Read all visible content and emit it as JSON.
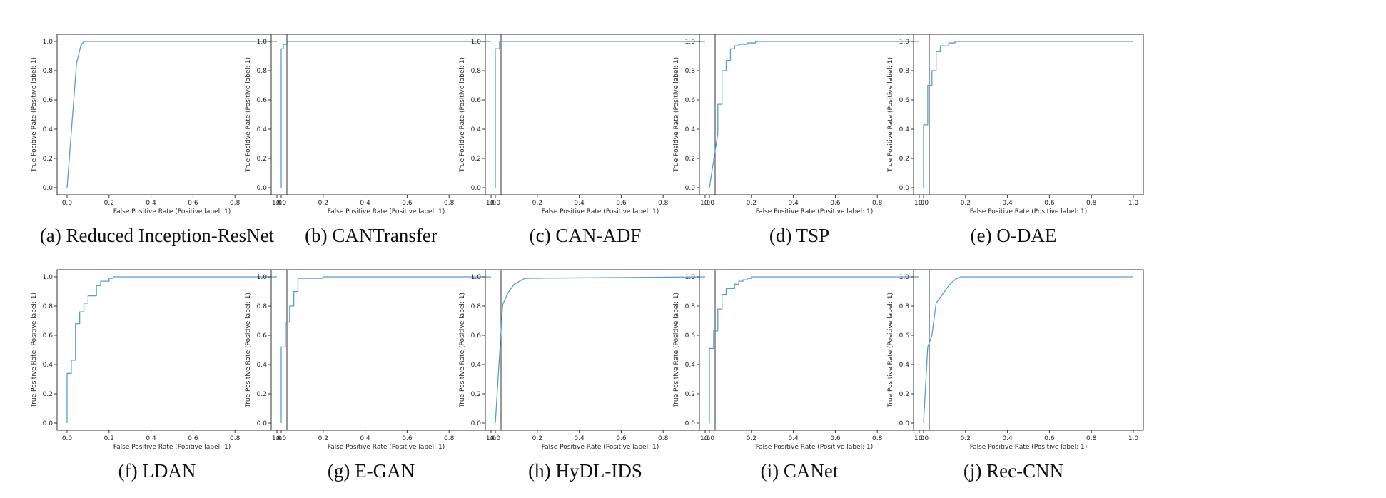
{
  "chart_data": [
    {
      "type": "line",
      "caption": "(a) Reduced Inception-ResNet",
      "xlabel": "False Positive Rate (Positive label: 1)",
      "ylabel": "True Positive Rate (Positive label: 1)",
      "xlim": [
        0,
        1
      ],
      "ylim": [
        0,
        1
      ],
      "xticks": [
        "0.0",
        "0.2",
        "0.4",
        "0.6",
        "0.8",
        "1.0"
      ],
      "yticks": [
        "0.0",
        "0.2",
        "0.4",
        "0.6",
        "0.8",
        "1.0"
      ],
      "series": [
        {
          "x": [
            0,
            0.045,
            0.065,
            0.08,
            1.0
          ],
          "y": [
            0,
            0.85,
            0.97,
            1.0,
            1.0
          ]
        }
      ]
    },
    {
      "type": "line",
      "caption": "(b) CANTransfer",
      "xlabel": "False Positive Rate (Positive label: 1)",
      "ylabel": "True Positive Rate (Positive label: 1)",
      "xlim": [
        0,
        1
      ],
      "ylim": [
        0,
        1
      ],
      "xticks": [
        "0.0",
        "0.2",
        "0.4",
        "0.6",
        "0.8",
        "1.0"
      ],
      "yticks": [
        "0.0",
        "0.2",
        "0.4",
        "0.6",
        "0.8",
        "1.0"
      ],
      "series": [
        {
          "x": [
            0,
            0,
            0.01,
            0.01,
            0.03,
            0.03,
            1.0
          ],
          "y": [
            0,
            0.95,
            0.95,
            0.98,
            0.98,
            1.0,
            1.0
          ]
        }
      ]
    },
    {
      "type": "line",
      "caption": "(c) CAN-ADF",
      "xlabel": "False Positive Rate (Positive label: 1)",
      "ylabel": "True Positive Rate (Positive label: 1)",
      "xlim": [
        0,
        1
      ],
      "ylim": [
        0,
        1
      ],
      "xticks": [
        "0.0",
        "0.2",
        "0.4",
        "0.6",
        "0.8",
        "1.0"
      ],
      "yticks": [
        "0.0",
        "0.2",
        "0.4",
        "0.6",
        "0.8",
        "1.0"
      ],
      "series": [
        {
          "x": [
            0,
            0,
            0.02,
            0.02,
            1.0
          ],
          "y": [
            0,
            0.95,
            0.95,
            1.0,
            1.0
          ]
        }
      ]
    },
    {
      "type": "line",
      "caption": "(d) TSP",
      "xlabel": "False Positive Rate (Positive label: 1)",
      "ylabel": "True Positive Rate (Positive label: 1)",
      "xlim": [
        0,
        1
      ],
      "ylim": [
        0,
        1
      ],
      "xticks": [
        "0.0",
        "0.2",
        "0.4",
        "0.6",
        "0.8",
        "1.0"
      ],
      "yticks": [
        "0.0",
        "0.2",
        "0.4",
        "0.6",
        "0.8",
        "1.0"
      ],
      "series": [
        {
          "x": [
            0,
            0.04,
            0.04,
            0.06,
            0.06,
            0.08,
            0.08,
            0.1,
            0.1,
            0.12,
            0.12,
            0.14,
            0.14,
            0.18,
            0.18,
            0.22,
            0.22,
            1.0
          ],
          "y": [
            0,
            0.37,
            0.57,
            0.57,
            0.8,
            0.8,
            0.87,
            0.87,
            0.95,
            0.95,
            0.97,
            0.97,
            0.98,
            0.98,
            0.99,
            0.99,
            1.0,
            1.0
          ]
        }
      ]
    },
    {
      "type": "line",
      "caption": "(e) O-DAE",
      "xlabel": "False Positive Rate (Positive label: 1)",
      "ylabel": "True Positive Rate (Positive label: 1)",
      "xlim": [
        0,
        1
      ],
      "ylim": [
        0,
        1
      ],
      "xticks": [
        "0.0",
        "0.2",
        "0.4",
        "0.6",
        "0.8",
        "1.0"
      ],
      "yticks": [
        "0.0",
        "0.2",
        "0.4",
        "0.6",
        "0.8",
        "1.0"
      ],
      "series": [
        {
          "x": [
            0,
            0,
            0.02,
            0.02,
            0.04,
            0.04,
            0.06,
            0.06,
            0.08,
            0.08,
            0.12,
            0.12,
            0.15,
            0.15,
            1.0
          ],
          "y": [
            0,
            0.43,
            0.43,
            0.7,
            0.7,
            0.8,
            0.8,
            0.93,
            0.93,
            0.97,
            0.97,
            0.99,
            0.99,
            1.0,
            1.0
          ]
        }
      ]
    },
    {
      "type": "line",
      "caption": "(f) LDAN",
      "xlabel": "False Positive Rate (Positive label: 1)",
      "ylabel": "True Positive Rate (Positive label: 1)",
      "xlim": [
        0,
        1
      ],
      "ylim": [
        0,
        1
      ],
      "xticks": [
        "0.0",
        "0.2",
        "0.4",
        "0.6",
        "0.8",
        "1.0"
      ],
      "yticks": [
        "0.0",
        "0.2",
        "0.4",
        "0.6",
        "0.8",
        "1.0"
      ],
      "series": [
        {
          "x": [
            0,
            0,
            0.02,
            0.02,
            0.04,
            0.04,
            0.06,
            0.06,
            0.08,
            0.08,
            0.1,
            0.1,
            0.14,
            0.14,
            0.16,
            0.16,
            0.2,
            0.2,
            0.22,
            0.22,
            1.0
          ],
          "y": [
            0,
            0.34,
            0.34,
            0.43,
            0.43,
            0.68,
            0.68,
            0.76,
            0.76,
            0.82,
            0.82,
            0.87,
            0.87,
            0.94,
            0.94,
            0.97,
            0.97,
            0.99,
            0.99,
            1.0,
            1.0
          ]
        }
      ]
    },
    {
      "type": "line",
      "caption": "(g) E-GAN",
      "xlabel": "False Positive Rate (Positive label: 1)",
      "ylabel": "True Positive Rate (Positive label: 1)",
      "xlim": [
        0,
        1
      ],
      "ylim": [
        0,
        1
      ],
      "xticks": [
        "0.0",
        "0.2",
        "0.4",
        "0.6",
        "0.8",
        "1.0"
      ],
      "yticks": [
        "0.0",
        "0.2",
        "0.4",
        "0.6",
        "0.8",
        "1.0"
      ],
      "series": [
        {
          "x": [
            0,
            0,
            0.02,
            0.02,
            0.04,
            0.04,
            0.06,
            0.06,
            0.08,
            0.08,
            0.2,
            0.2,
            1.0
          ],
          "y": [
            0,
            0.52,
            0.52,
            0.69,
            0.69,
            0.8,
            0.8,
            0.9,
            0.9,
            0.99,
            0.99,
            1.0,
            1.0
          ]
        }
      ]
    },
    {
      "type": "line",
      "caption": "(h) HyDL-IDS",
      "xlabel": "False Positive Rate (Positive label: 1)",
      "ylabel": "True Positive Rate (Positive label: 1)",
      "xlim": [
        0,
        1
      ],
      "ylim": [
        0,
        1
      ],
      "xticks": [
        "0.0",
        "0.2",
        "0.4",
        "0.6",
        "0.8",
        "1.0"
      ],
      "yticks": [
        "0.0",
        "0.2",
        "0.4",
        "0.6",
        "0.8",
        "1.0"
      ],
      "series": [
        {
          "x": [
            0,
            0.035,
            0.06,
            0.09,
            0.14,
            1.0
          ],
          "y": [
            0,
            0.81,
            0.89,
            0.95,
            0.99,
            1.0
          ]
        }
      ]
    },
    {
      "type": "line",
      "caption": "(i) CANet",
      "xlabel": "False Positive Rate (Positive label: 1)",
      "ylabel": "True Positive Rate (Positive label: 1)",
      "xlim": [
        0,
        1
      ],
      "ylim": [
        0,
        1
      ],
      "xticks": [
        "0.0",
        "0.2",
        "0.4",
        "0.6",
        "0.8",
        "1.0"
      ],
      "yticks": [
        "0.0",
        "0.2",
        "0.4",
        "0.6",
        "0.8",
        "1.0"
      ],
      "series": [
        {
          "x": [
            0,
            0,
            0.02,
            0.02,
            0.04,
            0.04,
            0.06,
            0.06,
            0.08,
            0.08,
            0.12,
            0.12,
            0.14,
            0.14,
            0.16,
            0.16,
            0.18,
            0.18,
            0.2,
            0.2,
            1.0
          ],
          "y": [
            0,
            0.51,
            0.51,
            0.63,
            0.63,
            0.78,
            0.78,
            0.88,
            0.88,
            0.92,
            0.92,
            0.95,
            0.95,
            0.97,
            0.97,
            0.98,
            0.98,
            0.99,
            0.99,
            1.0,
            1.0
          ]
        }
      ]
    },
    {
      "type": "line",
      "caption": "(j) Rec-CNN",
      "xlabel": "False Positive Rate (Positive label: 1)",
      "ylabel": "True Positive Rate (Positive label: 1)",
      "xlim": [
        0,
        1
      ],
      "ylim": [
        0,
        1
      ],
      "xticks": [
        "0.0",
        "0.2",
        "0.4",
        "0.6",
        "0.8",
        "1.0"
      ],
      "yticks": [
        "0.0",
        "0.2",
        "0.4",
        "0.6",
        "0.8",
        "1.0"
      ],
      "series": [
        {
          "x": [
            0,
            0.02,
            0.02,
            0.04,
            0.04,
            0.06,
            0.06,
            0.08,
            0.08,
            0.1,
            0.1,
            0.12,
            0.12,
            0.14,
            0.14,
            0.16,
            0.16,
            0.18,
            0.18,
            1.0
          ],
          "y": [
            0,
            0.52,
            0.52,
            0.6,
            0.6,
            0.82,
            0.82,
            0.86,
            0.86,
            0.9,
            0.9,
            0.94,
            0.94,
            0.97,
            0.97,
            0.99,
            0.99,
            1.0,
            1.0,
            1.0
          ]
        }
      ]
    }
  ],
  "colors": {
    "line": "#5b9bd5",
    "axes": "#333333"
  }
}
